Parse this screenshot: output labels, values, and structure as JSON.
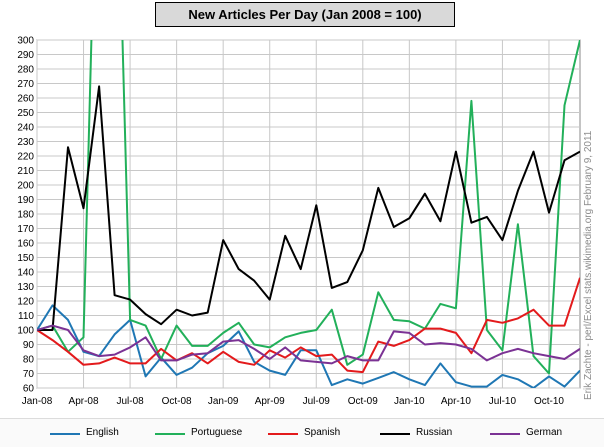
{
  "chart_data": {
    "type": "line",
    "title": "New Articles Per Day  (Jan 2008 = 100)",
    "x": [
      "Jan-08",
      "Feb-08",
      "Mar-08",
      "Apr-08",
      "May-08",
      "Jun-08",
      "Jul-08",
      "Aug-08",
      "Sep-08",
      "Oct-08",
      "Nov-08",
      "Dec-08",
      "Jan-09",
      "Feb-09",
      "Mar-09",
      "Apr-09",
      "May-09",
      "Jun-09",
      "Jul-09",
      "Aug-09",
      "Sep-09",
      "Oct-09",
      "Nov-09",
      "Dec-09",
      "Jan-10",
      "Feb-10",
      "Mar-10",
      "Apr-10",
      "May-10",
      "Jun-10",
      "Jul-10",
      "Aug-10",
      "Sep-10",
      "Oct-10",
      "Nov-10",
      "Dec-10"
    ],
    "x_tick_labels": [
      "Jan-08",
      "Apr-08",
      "Jul-08",
      "Oct-08",
      "Jan-09",
      "Apr-09",
      "Jul-09",
      "Oct-09",
      "Jan-10",
      "Apr-10",
      "Jul-10",
      "Oct-10"
    ],
    "ylim": [
      60,
      300
    ],
    "y_ticks": [
      60,
      70,
      80,
      90,
      100,
      110,
      120,
      130,
      140,
      150,
      160,
      170,
      180,
      190,
      200,
      210,
      220,
      230,
      240,
      250,
      260,
      270,
      280,
      290,
      300
    ],
    "grid": true,
    "legend_position": "bottom",
    "series": [
      {
        "name": "English",
        "color": "#1f77b4",
        "values": [
          100,
          117,
          107,
          85,
          82,
          97,
          107,
          68,
          81,
          69,
          74,
          84,
          89,
          99,
          78,
          72,
          69,
          86,
          86,
          62,
          66,
          63,
          67,
          71,
          66,
          62,
          77,
          64,
          61,
          61,
          69,
          66,
          60,
          68,
          61,
          72
        ]
      },
      {
        "name": "Portuguese",
        "color": "#22b05a",
        "values": [
          100,
          103,
          85,
          95,
          500,
          500,
          107,
          103,
          80,
          103,
          89,
          89,
          98,
          105,
          90,
          88,
          95,
          98,
          100,
          114,
          76,
          83,
          126,
          107,
          106,
          101,
          118,
          115,
          258,
          100,
          86,
          173,
          82,
          70,
          255,
          300
        ]
      },
      {
        "name": "Spanish",
        "color": "#e31a1c",
        "values": [
          100,
          93,
          85,
          76,
          77,
          81,
          77,
          77,
          87,
          79,
          84,
          77,
          85,
          78,
          76,
          86,
          81,
          88,
          82,
          83,
          72,
          71,
          92,
          89,
          93,
          101,
          101,
          98,
          84,
          107,
          105,
          108,
          114,
          103,
          103,
          136
        ]
      },
      {
        "name": "Russian",
        "color": "#000000",
        "values": [
          100,
          100,
          226,
          184,
          268,
          124,
          121,
          111,
          104,
          114,
          110,
          112,
          162,
          142,
          134,
          121,
          165,
          142,
          186,
          129,
          133,
          155,
          198,
          171,
          177,
          194,
          175,
          223,
          174,
          178,
          162,
          196,
          223,
          181,
          217,
          223
        ]
      },
      {
        "name": "German",
        "color": "#7b3294",
        "values": [
          100,
          103,
          100,
          86,
          82,
          83,
          88,
          95,
          79,
          79,
          83,
          84,
          92,
          93,
          87,
          80,
          88,
          79,
          78,
          77,
          82,
          79,
          79,
          99,
          98,
          90,
          91,
          90,
          87,
          79,
          84,
          87,
          84,
          82,
          80,
          87
        ]
      }
    ],
    "side_note": "Erik Zachte - perl/Excel    stats.wikimedia.org     February 9, 2011"
  }
}
